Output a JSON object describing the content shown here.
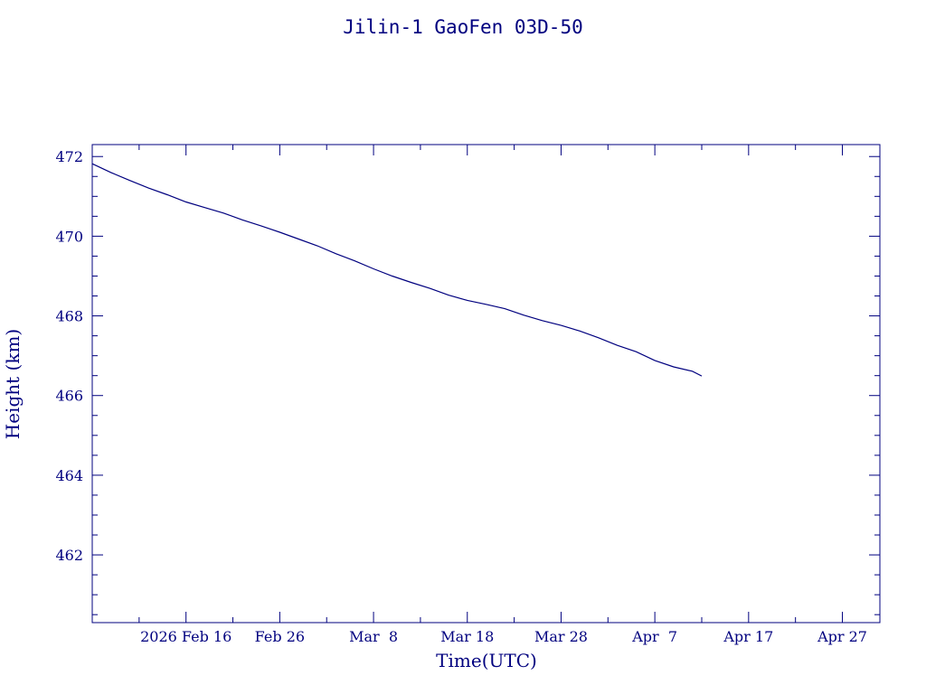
{
  "chart_data": {
    "type": "line",
    "title": "Jilin-1 GaoFen 03D-50",
    "xlabel": "Time(UTC)",
    "ylabel": "Height (km)",
    "x_axis_type": "date",
    "xlim": [
      "2026-02-06",
      "2026-05-01"
    ],
    "ylim": [
      460.3,
      472.3
    ],
    "x_tick_labels": [
      {
        "date": "2026-02-16",
        "label": "2026 Feb 16"
      },
      {
        "date": "2026-02-26",
        "label": "Feb 26"
      },
      {
        "date": "2026-03-08",
        "label": "Mar  8"
      },
      {
        "date": "2026-03-18",
        "label": "Mar 18"
      },
      {
        "date": "2026-03-28",
        "label": "Mar 28"
      },
      {
        "date": "2026-04-07",
        "label": "Apr  7"
      },
      {
        "date": "2026-04-17",
        "label": "Apr 17"
      },
      {
        "date": "2026-04-27",
        "label": "Apr 27"
      }
    ],
    "y_ticks": [
      462,
      464,
      466,
      468,
      470,
      472
    ],
    "y_tick_labels": [
      "462",
      "464",
      "466",
      "468",
      "470",
      "472"
    ],
    "grid": false,
    "color": "#00007f",
    "series": [
      {
        "x": [
          "2026-02-06",
          "2026-02-08",
          "2026-02-10",
          "2026-02-12",
          "2026-02-14",
          "2026-02-16",
          "2026-02-18",
          "2026-02-20",
          "2026-02-22",
          "2026-02-24",
          "2026-02-26",
          "2026-02-28",
          "2026-03-02",
          "2026-03-04",
          "2026-03-06",
          "2026-03-08",
          "2026-03-10",
          "2026-03-12",
          "2026-03-14",
          "2026-03-16",
          "2026-03-18",
          "2026-03-20",
          "2026-03-22",
          "2026-03-24",
          "2026-03-26",
          "2026-03-28",
          "2026-03-30",
          "2026-04-01",
          "2026-04-03",
          "2026-04-05",
          "2026-04-07",
          "2026-04-09",
          "2026-04-11",
          "2026-04-12"
        ],
        "y": [
          471.82,
          471.6,
          471.4,
          471.21,
          471.04,
          470.86,
          470.72,
          470.58,
          470.41,
          470.26,
          470.1,
          469.93,
          469.76,
          469.56,
          469.38,
          469.18,
          469.0,
          468.84,
          468.69,
          468.52,
          468.39,
          468.29,
          468.18,
          468.02,
          467.88,
          467.76,
          467.62,
          467.45,
          467.26,
          467.1,
          466.88,
          466.72,
          466.61,
          466.49
        ]
      }
    ]
  }
}
